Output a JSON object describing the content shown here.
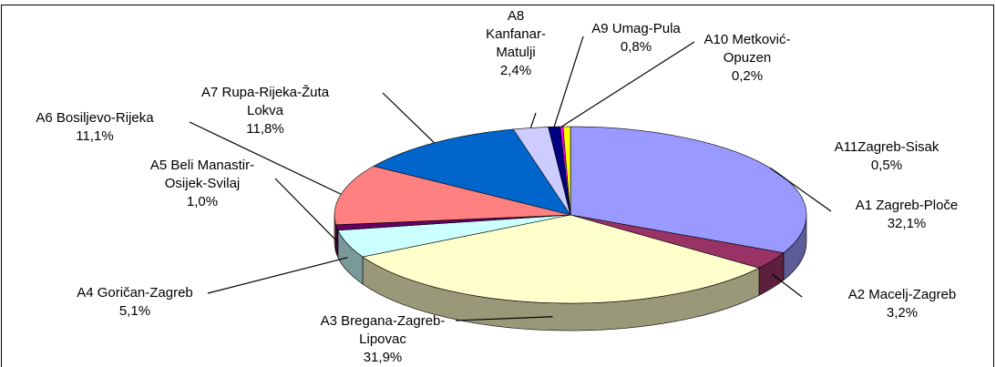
{
  "chart_data": {
    "type": "pie3d",
    "categories": [
      "A1 Zagreb-Ploče",
      "A2 Macelj-Zagreb",
      "A3 Bregana-Zagreb-Lipovac",
      "A4 Goričan-Zagreb",
      "A5 Beli Manastir-Osijek-Svilaj",
      "A6 Bosiljevo-Rijeka",
      "A7 Rupa-Rijeka-Žuta Lokva",
      "A8 Kanfanar-Matulji",
      "A9 Umag-Pula",
      "A10 Metković-Opuzen",
      "A11Zagreb-Sisak"
    ],
    "values": [
      32.1,
      3.2,
      31.9,
      5.1,
      1.0,
      11.1,
      11.8,
      2.4,
      0.8,
      0.2,
      0.5
    ],
    "value_labels": [
      "32,1%",
      "3,2%",
      "31,9%",
      "5,1%",
      "1,0%",
      "11,1%",
      "11,8%",
      "2,4%",
      "0,8%",
      "0,2%",
      "0,5%"
    ],
    "colors": [
      "#9999ff",
      "#993366",
      "#ffffcc",
      "#ccffff",
      "#660066",
      "#ff8080",
      "#0066cc",
      "#ccccff",
      "#000080",
      "#ff00ff",
      "#ffff00"
    ]
  }
}
